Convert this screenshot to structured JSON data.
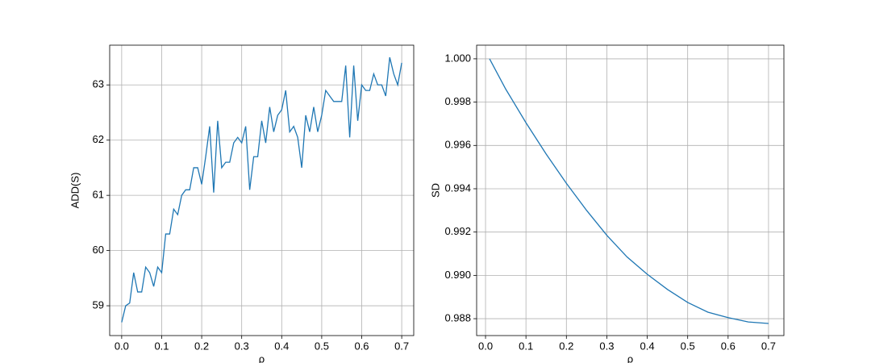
{
  "chart_data": [
    {
      "type": "line",
      "xlabel": "ρ",
      "ylabel": "ADD(S)",
      "grid": true,
      "x": [
        0.0,
        0.01,
        0.02,
        0.03,
        0.04,
        0.05,
        0.06,
        0.07,
        0.08,
        0.09,
        0.1,
        0.11,
        0.12,
        0.13,
        0.14,
        0.15,
        0.16,
        0.17,
        0.18,
        0.19,
        0.2,
        0.21,
        0.22,
        0.23,
        0.24,
        0.25,
        0.26,
        0.27,
        0.28,
        0.29,
        0.3,
        0.31,
        0.32,
        0.33,
        0.34,
        0.35,
        0.36,
        0.37,
        0.38,
        0.39,
        0.4,
        0.41,
        0.42,
        0.43,
        0.44,
        0.45,
        0.46,
        0.47,
        0.48,
        0.49,
        0.5,
        0.51,
        0.52,
        0.53,
        0.54,
        0.55,
        0.56,
        0.57,
        0.58,
        0.59,
        0.6,
        0.61,
        0.62,
        0.63,
        0.64,
        0.65,
        0.66,
        0.67,
        0.68,
        0.69,
        0.7
      ],
      "series": [
        {
          "color": "#1f77b4",
          "values": [
            58.7,
            59.0,
            59.05,
            59.6,
            59.25,
            59.25,
            59.7,
            59.6,
            59.35,
            59.7,
            59.6,
            60.3,
            60.3,
            60.75,
            60.65,
            61.0,
            61.1,
            61.1,
            61.5,
            61.5,
            61.2,
            61.7,
            62.25,
            61.05,
            62.35,
            61.5,
            61.6,
            61.6,
            61.95,
            62.05,
            61.95,
            62.25,
            61.1,
            61.7,
            61.7,
            62.35,
            61.95,
            62.6,
            62.15,
            62.45,
            62.55,
            62.9,
            62.15,
            62.25,
            62.05,
            61.5,
            62.45,
            62.15,
            62.6,
            62.15,
            62.45,
            62.9,
            62.8,
            62.7,
            62.7,
            62.7,
            63.35,
            62.05,
            63.35,
            62.35,
            63.0,
            62.9,
            62.9,
            63.2,
            63.0,
            63.0,
            62.8,
            63.5,
            63.2,
            63.0,
            63.4
          ]
        }
      ],
      "xlim": [
        -0.03,
        0.73
      ],
      "ylim": [
        58.46,
        63.72
      ],
      "xticks": [
        {
          "value": 0,
          "label": "0.0"
        },
        0.1,
        0.2,
        0.3,
        0.4,
        0.5,
        0.6,
        0.7
      ],
      "yticks": [
        59,
        60,
        61,
        62,
        63
      ]
    },
    {
      "type": "line",
      "xlabel": "ρ",
      "ylabel": "SD",
      "grid": true,
      "x": [
        0.01,
        0.05,
        0.1,
        0.15,
        0.2,
        0.25,
        0.3,
        0.35,
        0.4,
        0.45,
        0.5,
        0.55,
        0.6,
        0.65,
        0.7
      ],
      "series": [
        {
          "color": "#1f77b4",
          "values": [
            1.0,
            0.9986,
            0.99705,
            0.9956,
            0.99425,
            0.993,
            0.99185,
            0.99085,
            0.99005,
            0.98935,
            0.98875,
            0.9883,
            0.98805,
            0.98785,
            0.98778
          ]
        }
      ],
      "xlim": [
        -0.022,
        0.738
      ],
      "ylim": [
        0.98722,
        1.00063
      ],
      "xticks": [
        {
          "value": 0,
          "label": "0.0"
        },
        0.1,
        0.2,
        0.3,
        0.4,
        0.5,
        0.6,
        0.7
      ],
      "yticks": [
        {
          "value": 0.988,
          "label": "0.988"
        },
        {
          "value": 0.99,
          "label": "0.990"
        },
        {
          "value": 0.992,
          "label": "0.992"
        },
        {
          "value": 0.994,
          "label": "0.994"
        },
        {
          "value": 0.996,
          "label": "0.996"
        },
        {
          "value": 0.998,
          "label": "0.998"
        },
        {
          "value": 1,
          "label": "1.000"
        }
      ]
    }
  ]
}
